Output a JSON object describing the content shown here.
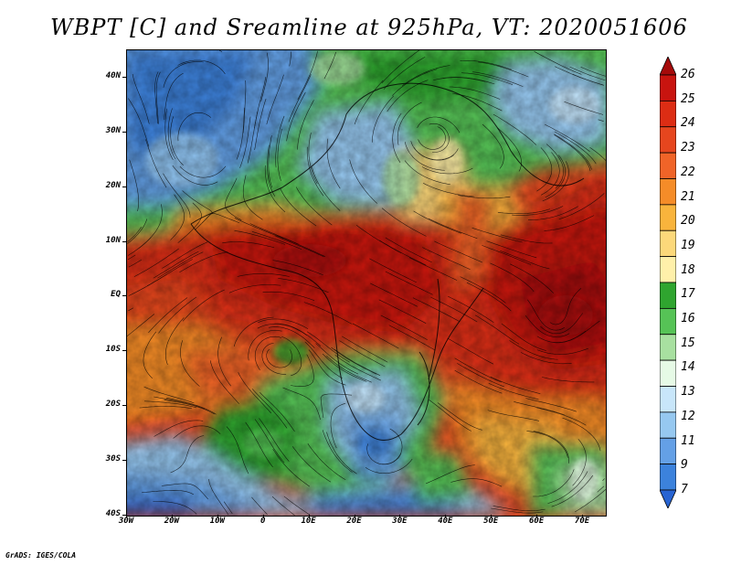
{
  "title": "WBPT [C] and Sreamline at 925hPa, VT: 2020051606",
  "footer": "GrADS: IGES/COLA",
  "map": {
    "lat_labels": [
      "40N",
      "30N",
      "20N",
      "10N",
      "EQ",
      "10S",
      "20S",
      "30S",
      "40S"
    ],
    "lon_labels": [
      "30W",
      "20W",
      "10W",
      "0",
      "10E",
      "20E",
      "30E",
      "40E",
      "50E",
      "60E",
      "70E"
    ]
  },
  "colorbar": {
    "labels": [
      "26",
      "25",
      "24",
      "23",
      "22",
      "21",
      "20",
      "19",
      "18",
      "17",
      "16",
      "15",
      "14",
      "13",
      "12",
      "11",
      "9",
      "7"
    ],
    "colors": [
      "#a50a0a",
      "#c8140f",
      "#dc2d14",
      "#e6461e",
      "#f06428",
      "#f58c28",
      "#f9b43c",
      "#fcd87a",
      "#fff0aa",
      "#2fa52f",
      "#56c356",
      "#a8e0a0",
      "#e6fae6",
      "#c8e6fa",
      "#96c8f0",
      "#64a0e6",
      "#3c82dc",
      "#2864d2"
    ]
  }
}
